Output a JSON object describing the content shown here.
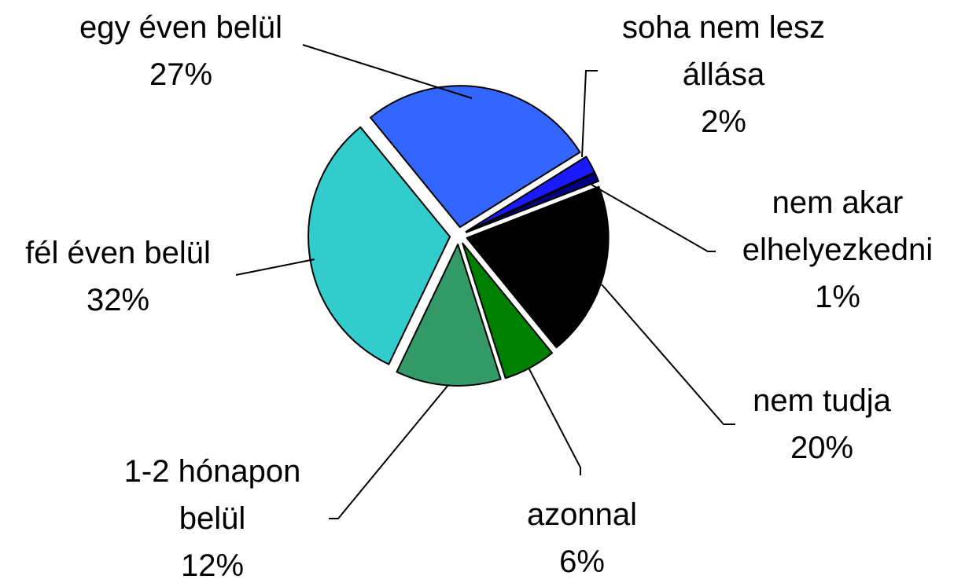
{
  "chart_data": {
    "type": "pie",
    "categories": [
      "soha nem lesz állása",
      "nem akar elhelyezkedni",
      "nem tudja",
      "azonnal",
      "1-2 hónapon belül",
      "fél éven belül",
      "egy éven belül"
    ],
    "values": [
      2,
      1,
      20,
      6,
      12,
      32,
      27
    ],
    "value_labels": [
      "2%",
      "1%",
      "20%",
      "6%",
      "12%",
      "32%",
      "27%"
    ],
    "colors": [
      "#1a1aff",
      "#000080",
      "#000000",
      "#008000",
      "#339966",
      "#33cccc",
      "#3366ff"
    ]
  }
}
